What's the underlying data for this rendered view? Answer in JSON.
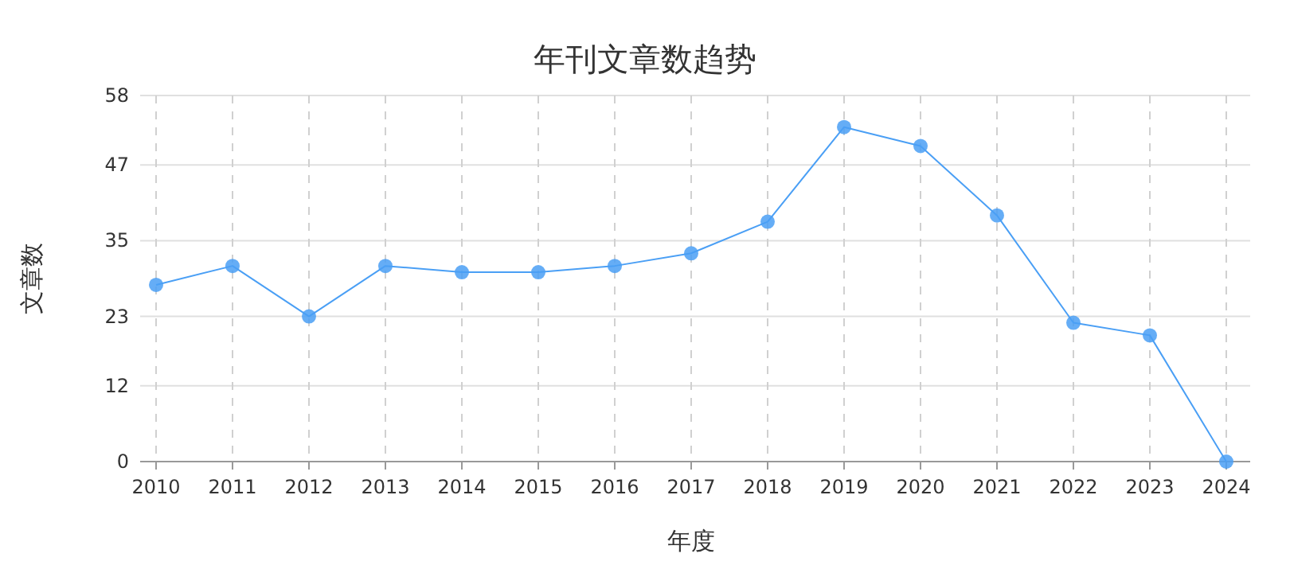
{
  "chart_data": {
    "type": "line",
    "title": "年刊文章数趋势",
    "xlabel": "年度",
    "ylabel": "文章数",
    "categories": [
      "2010",
      "2011",
      "2012",
      "2013",
      "2014",
      "2015",
      "2016",
      "2017",
      "2018",
      "2019",
      "2020",
      "2021",
      "2022",
      "2023",
      "2024"
    ],
    "series": [
      {
        "color": "#4a9ff5",
        "values": [
          28,
          31,
          23,
          31,
          30,
          30,
          31,
          33,
          38,
          53,
          50,
          39,
          22,
          20,
          0
        ]
      }
    ],
    "ylim": [
      0,
      58
    ],
    "yticks": [
      0,
      12,
      23,
      35,
      47,
      58
    ],
    "grid": true,
    "marker": "circle",
    "line_style": "solid"
  }
}
